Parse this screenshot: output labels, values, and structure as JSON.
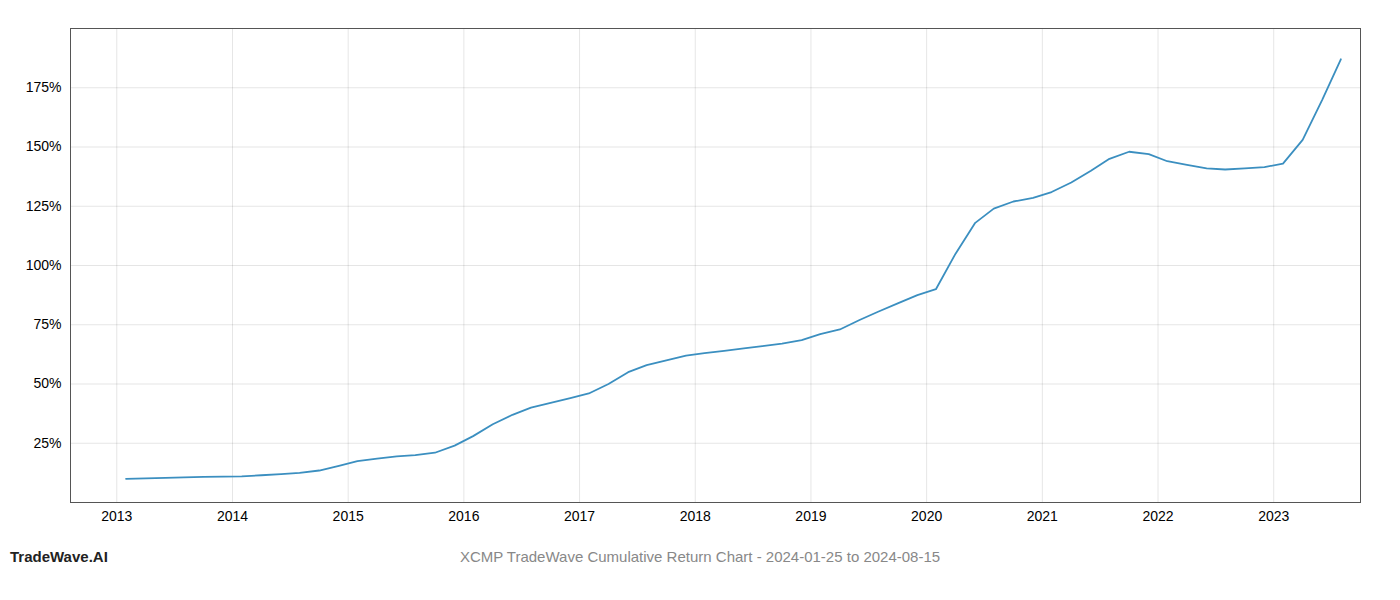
{
  "chart_data": {
    "type": "line",
    "title": "XCMP TradeWave Cumulative Return Chart - 2024-01-25 to 2024-08-15",
    "annotations": [
      "TradeWave.AI"
    ],
    "color": "#3b8fc0",
    "grid": true,
    "x": [
      2013.08,
      2013.25,
      2013.42,
      2013.58,
      2013.75,
      2013.92,
      2014.08,
      2014.25,
      2014.42,
      2014.58,
      2014.75,
      2014.92,
      2015.08,
      2015.25,
      2015.42,
      2015.58,
      2015.75,
      2015.92,
      2016.08,
      2016.25,
      2016.42,
      2016.58,
      2016.75,
      2016.92,
      2017.08,
      2017.25,
      2017.42,
      2017.58,
      2017.75,
      2017.92,
      2018.08,
      2018.25,
      2018.42,
      2018.58,
      2018.75,
      2018.92,
      2019.08,
      2019.25,
      2019.42,
      2019.58,
      2019.75,
      2019.92,
      2020.08,
      2020.25,
      2020.42,
      2020.58,
      2020.75,
      2020.92,
      2021.08,
      2021.25,
      2021.42,
      2021.58,
      2021.75,
      2021.92,
      2022.08,
      2022.25,
      2022.42,
      2022.58,
      2022.75,
      2022.92,
      2023.08,
      2023.25,
      2023.42,
      2023.58
    ],
    "values": [
      10.0,
      10.2,
      10.4,
      10.6,
      10.8,
      10.9,
      11.0,
      11.5,
      12.0,
      12.5,
      13.5,
      15.5,
      17.5,
      18.5,
      19.5,
      20.0,
      21.0,
      24.0,
      28.0,
      33.0,
      37.0,
      40.0,
      42.0,
      44.0,
      46.0,
      50.0,
      55.0,
      58.0,
      60.0,
      62.0,
      63.0,
      64.0,
      65.0,
      66.0,
      67.0,
      68.5,
      71.0,
      73.0,
      77.0,
      80.5,
      84.0,
      87.5,
      90.0,
      105.0,
      118.0,
      124.0,
      127.0,
      128.5,
      131.0,
      135.0,
      140.0,
      145.0,
      148.0,
      147.0,
      144.0,
      142.5,
      141.0,
      140.5,
      141.0,
      141.5,
      143.0,
      153.0,
      170.0,
      187.0
    ],
    "xlim": [
      2012.6,
      2023.75
    ],
    "xticks": [
      2013,
      2014,
      2015,
      2016,
      2017,
      2018,
      2019,
      2020,
      2021,
      2022,
      2023
    ],
    "ylim": [
      0,
      200
    ],
    "yticks": [
      {
        "value": 25,
        "label": "25%"
      },
      {
        "value": 50,
        "label": "50%"
      },
      {
        "value": 75,
        "label": "75%"
      },
      {
        "value": 100,
        "label": "100%"
      },
      {
        "value": 125,
        "label": "125%"
      },
      {
        "value": 150,
        "label": "150%"
      },
      {
        "value": 175,
        "label": "175%"
      }
    ]
  }
}
